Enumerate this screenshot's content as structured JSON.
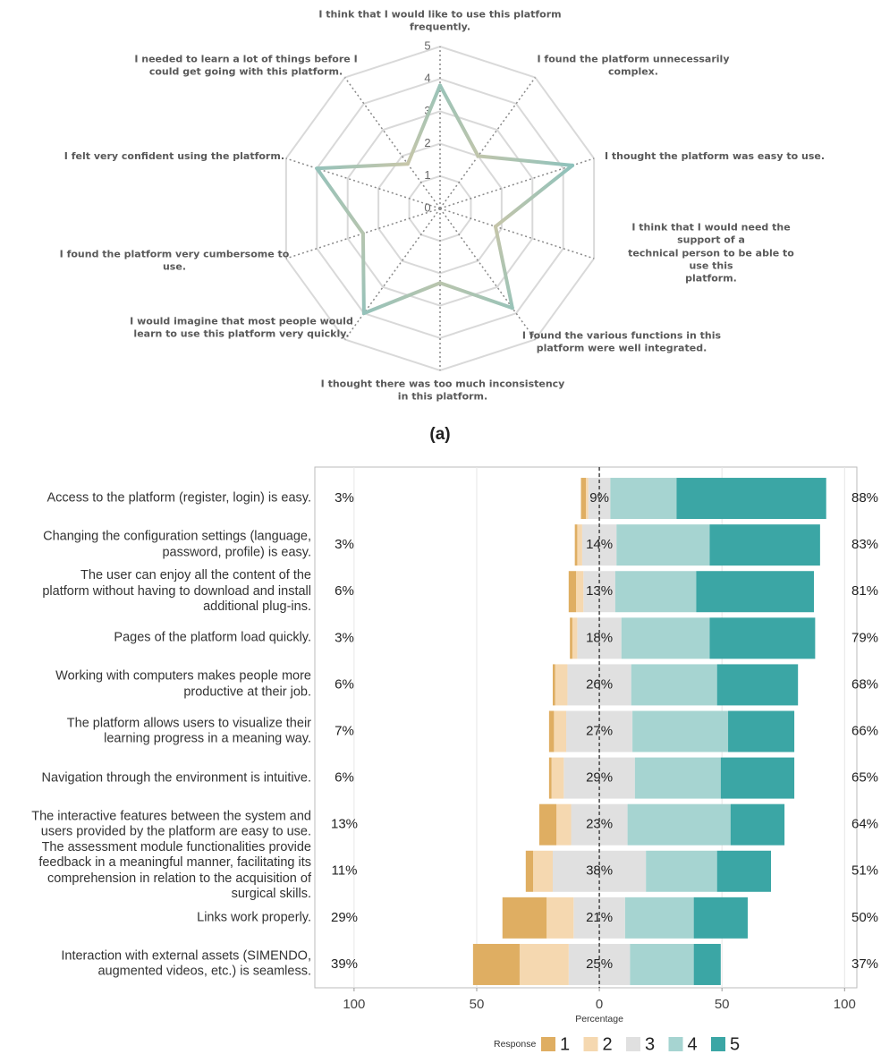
{
  "chart_data": [
    {
      "type": "radar",
      "panel_label": "(a)",
      "axes": [
        "I think that I would like to use this platform\nfrequently.",
        "I found the platform unnecessarily\ncomplex.",
        "I thought the platform was easy to use.",
        "I think that I would need the support of a\ntechnical person to be able to use this\nplatform.",
        "I found the various functions in this\nplatform were well integrated.",
        "I thought there was too much inconsistency\nin this platform.",
        "I would imagine that most people would\nlearn to use this platform very quickly.",
        "I found the platform very cumbersome to\nuse.",
        "I felt very confident using the platform.",
        "I needed to learn a lot of things before I\ncould get going with this platform."
      ],
      "values": [
        3.8,
        2.0,
        4.3,
        1.8,
        3.8,
        2.3,
        4.0,
        2.5,
        4.0,
        1.7
      ],
      "rlim": [
        0,
        5
      ],
      "rticks": [
        0,
        1,
        2,
        3,
        4,
        5
      ],
      "color_scale": [
        "#ecc89c",
        "#7fc1c1"
      ]
    },
    {
      "type": "diverging_bar",
      "categories": [
        "Access to the platform (register, login) is easy.",
        "Changing the configuration settings (language,\npassword, profile) is easy.",
        "The user can enjoy all the content of the\nplatform without having to download and install\nadditional plug-ins.",
        "Pages of the platform load quickly.",
        "Working with computers makes people more\nproductive at their job.",
        "The platform allows users to visualize their\nlearning progress in a meaning way.",
        "Navigation through the environment is intuitive.",
        "The interactive features between the system and\nusers provided by the platform are easy to use.",
        "The assessment module functionalities provide\nfeedback in a meaningful manner, facilitating its\ncomprehension in relation to the acquisition of\nsurgical skills.",
        "Links work properly.",
        "Interaction with external assets (SIMENDO,\naugmented videos, etc.) is seamless."
      ],
      "series": [
        {
          "name": "1",
          "color": "#dfae62",
          "values": [
            2,
            1,
            3,
            1,
            1,
            2,
            1,
            7,
            3,
            18,
            19
          ]
        },
        {
          "name": "2",
          "color": "#f5d8b0",
          "values": [
            1,
            2,
            3,
            2,
            5,
            5,
            5,
            6,
            8,
            11,
            20
          ]
        },
        {
          "name": "3",
          "color": "#e0e0e0",
          "values": [
            9,
            14,
            13,
            18,
            26,
            27,
            29,
            23,
            38,
            21,
            25
          ]
        },
        {
          "name": "4",
          "color": "#a6d4d1",
          "values": [
            27,
            38,
            33,
            36,
            35,
            39,
            35,
            42,
            29,
            28,
            26
          ]
        },
        {
          "name": "5",
          "color": "#3ba6a5",
          "values": [
            61,
            45,
            48,
            43,
            33,
            27,
            30,
            22,
            22,
            22,
            11
          ]
        }
      ],
      "left_totals": {
        "values": [
          3,
          3,
          6,
          3,
          6,
          7,
          6,
          13,
          11,
          29,
          39
        ],
        "value_labels": [
          "3%",
          "3%",
          "6%",
          "3%",
          "6%",
          "7%",
          "6%",
          "13%",
          "11%",
          "29%",
          "39%"
        ]
      },
      "neutral_totals": {
        "values": [
          9,
          14,
          13,
          18,
          26,
          27,
          29,
          23,
          38,
          21,
          25
        ],
        "value_labels": [
          "9%",
          "14%",
          "13%",
          "18%",
          "26%",
          "27%",
          "29%",
          "23%",
          "38%",
          "21%",
          "25%"
        ]
      },
      "right_totals": {
        "values": [
          88,
          83,
          81,
          79,
          68,
          66,
          65,
          64,
          51,
          50,
          37
        ],
        "value_labels": [
          "88%",
          "83%",
          "81%",
          "79%",
          "68%",
          "66%",
          "65%",
          "64%",
          "51%",
          "50%",
          "37%"
        ]
      },
      "x_label": "Percentage",
      "xlim": [
        -116,
        105
      ],
      "xticks": [
        {
          "value": -100,
          "label": "100"
        },
        {
          "value": -50,
          "label": "50"
        },
        0,
        50,
        100
      ],
      "grid": true,
      "legend_title": "Response",
      "legend": "bottom"
    }
  ]
}
